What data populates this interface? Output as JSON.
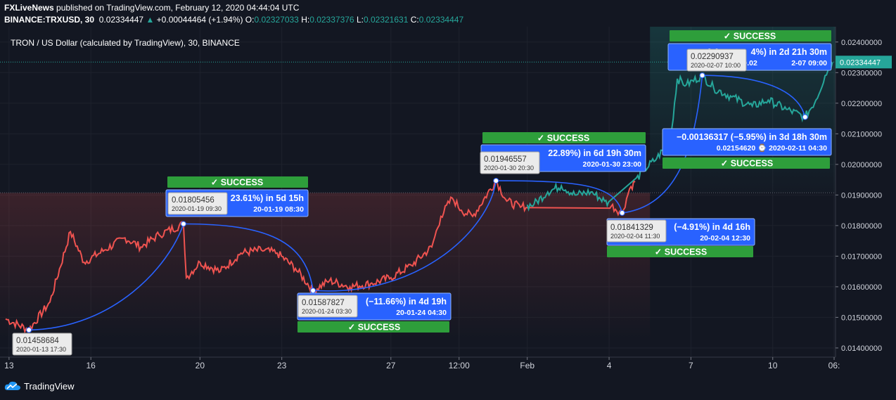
{
  "header": {
    "author": "FXLiveNews",
    "published": "published on TradingView.com, February 12, 2020 04:44:04 UTC",
    "symbol": "BINANCE:TRXUSD, 30",
    "last": "0.02334447",
    "change": "+0.00044464 (+1.94%)",
    "open_label": "O:",
    "open": "0.02327033",
    "high_label": "H:",
    "high": "0.02337376",
    "low_label": "L:",
    "low": "0.02321631",
    "close_label": "C:",
    "close": "0.02334447",
    "legend": "TRON / US Dollar (calculated by TradingView), 30, BINANCE"
  },
  "colors": {
    "background": "#131722",
    "down": "#ef5350",
    "up": "#26a69a",
    "accent": "#2962ff",
    "pattern_line": "#2962ff",
    "success": "#2e9e3b",
    "price_box": "#2962ff",
    "axis_text": "#d1d4dc"
  },
  "chart_data": {
    "type": "line",
    "title": "TRON / US Dollar (calculated by TradingView), 30, BINANCE",
    "x_ticks": [
      "13",
      "16",
      "20",
      "23",
      "27",
      "12:00",
      "Feb",
      "4",
      "7",
      "10",
      "06:"
    ],
    "y_ticks": [
      "0.01400000",
      "0.01500000",
      "0.01600000",
      "0.01700000",
      "0.01800000",
      "0.01900000",
      "0.02000000",
      "0.02100000",
      "0.02200000",
      "0.02300000",
      "0.02400000"
    ],
    "ylim": [
      0.0137,
      0.0245
    ],
    "last_price": 0.02334447,
    "last_price_label": "0.02334447",
    "price_series_dates": [
      "2020-01-12 21:00",
      "2020-01-13 17:30",
      "2020-01-14 12:00",
      "2020-01-15 06:00",
      "2020-01-15 18:00",
      "2020-01-16 12:00",
      "2020-01-17 06:00",
      "2020-01-17 20:00",
      "2020-01-18 12:00",
      "2020-01-19 09:30",
      "2020-01-19 12:00",
      "2020-01-20 00:00",
      "2020-01-20 18:00",
      "2020-01-21 12:00",
      "2020-01-22 06:00",
      "2020-01-22 20:00",
      "2020-01-23 12:00",
      "2020-01-24 03:30",
      "2020-01-24 18:00",
      "2020-01-25 12:00",
      "2020-01-26 06:00",
      "2020-01-27 00:00",
      "2020-01-27 18:00",
      "2020-01-28 12:00",
      "2020-01-28 20:00",
      "2020-01-29 06:00",
      "2020-01-29 14:00",
      "2020-01-30 00:00",
      "2020-01-30 20:30",
      "2020-01-31 06:00",
      "2020-01-31 18:00",
      "2020-02-01 06:00",
      "2020-02-01 18:00",
      "2020-02-02 06:00",
      "2020-02-02 18:00",
      "2020-02-03 08:00",
      "2020-02-03 20:00",
      "2020-02-04 11:30",
      "2020-02-04 18:00",
      "2020-02-05 06:00",
      "2020-02-05 18:00",
      "2020-02-06 06:00",
      "2020-02-06 12:00",
      "2020-02-06 20:00",
      "2020-02-07 10:00",
      "2020-02-07 20:00",
      "2020-02-08 12:00",
      "2020-02-09 06:00",
      "2020-02-09 20:00",
      "2020-02-10 12:00",
      "2020-02-11 04:30",
      "2020-02-11 14:00",
      "2020-02-11 22:00",
      "2020-02-12 04:30"
    ],
    "price_series_values": [
      0.01495,
      0.01459,
      0.0155,
      0.0178,
      0.0168,
      0.0172,
      0.0176,
      0.0173,
      0.0177,
      0.01805,
      0.0163,
      0.0168,
      0.0165,
      0.0171,
      0.0172,
      0.0171,
      0.0166,
      0.01588,
      0.0162,
      0.016,
      0.0161,
      0.0163,
      0.0167,
      0.0173,
      0.0183,
      0.0189,
      0.0185,
      0.0183,
      0.01947,
      0.0188,
      0.0186,
      0.0187,
      0.0191,
      0.0193,
      0.019,
      0.0191,
      0.0188,
      0.01841,
      0.0192,
      0.0198,
      0.0202,
      0.0208,
      0.0228,
      0.0226,
      0.02291,
      0.0225,
      0.0222,
      0.0219,
      0.0221,
      0.0218,
      0.02155,
      0.0221,
      0.0229,
      0.02334
    ],
    "pivots": [
      {
        "price": "0.01458684",
        "date": "2020-01-13 17:30",
        "value": 0.01458684
      },
      {
        "price": "0.01805456",
        "date": "2020-01-19 09:30",
        "value": 0.01805456
      },
      {
        "price": "0.01587827",
        "date": "2020-01-24 03:30",
        "value": 0.01587827
      },
      {
        "price": "0.01946557",
        "date": "2020-01-30 20:30",
        "value": 0.01946557
      },
      {
        "price": "0.01841329",
        "date": "2020-02-04 11:30",
        "value": 0.01841329
      },
      {
        "price": "0.02290937",
        "date": "2020-02-07 10:00",
        "value": 0.02290937
      },
      {
        "price": "0.02154620",
        "date": "2020-02-11 04:30",
        "value": 0.0215462
      }
    ],
    "measurements": [
      {
        "line1": "23.61%) in 5d 15h",
        "line2": "20-01-19  08:30",
        "status": "SUCCESS"
      },
      {
        "line1": "(−11.66%) in 4d 19h",
        "line2": "20-01-24  04:30",
        "status": "SUCCESS"
      },
      {
        "line1": "22.89%) in 6d 19h 30m",
        "line2": "2020-01-30  23:00",
        "status": "SUCCESS"
      },
      {
        "line1": "(−4.91%) in 4d 16h",
        "line2": "20-02-04  12:30",
        "status": "SUCCESS"
      },
      {
        "line1": "0.0                  4%) in 2d 21h 30m",
        "line2": "0.02                       2-07  09:00",
        "status": "SUCCESS"
      },
      {
        "line1": "−0.00136317 (−5.95%) in 3d 18h 30m",
        "line2": "0.02154620 ⌚ 2020-02-11  04:30",
        "status": "SUCCESS"
      }
    ]
  },
  "footer": {
    "logo_text": "TradingView"
  }
}
